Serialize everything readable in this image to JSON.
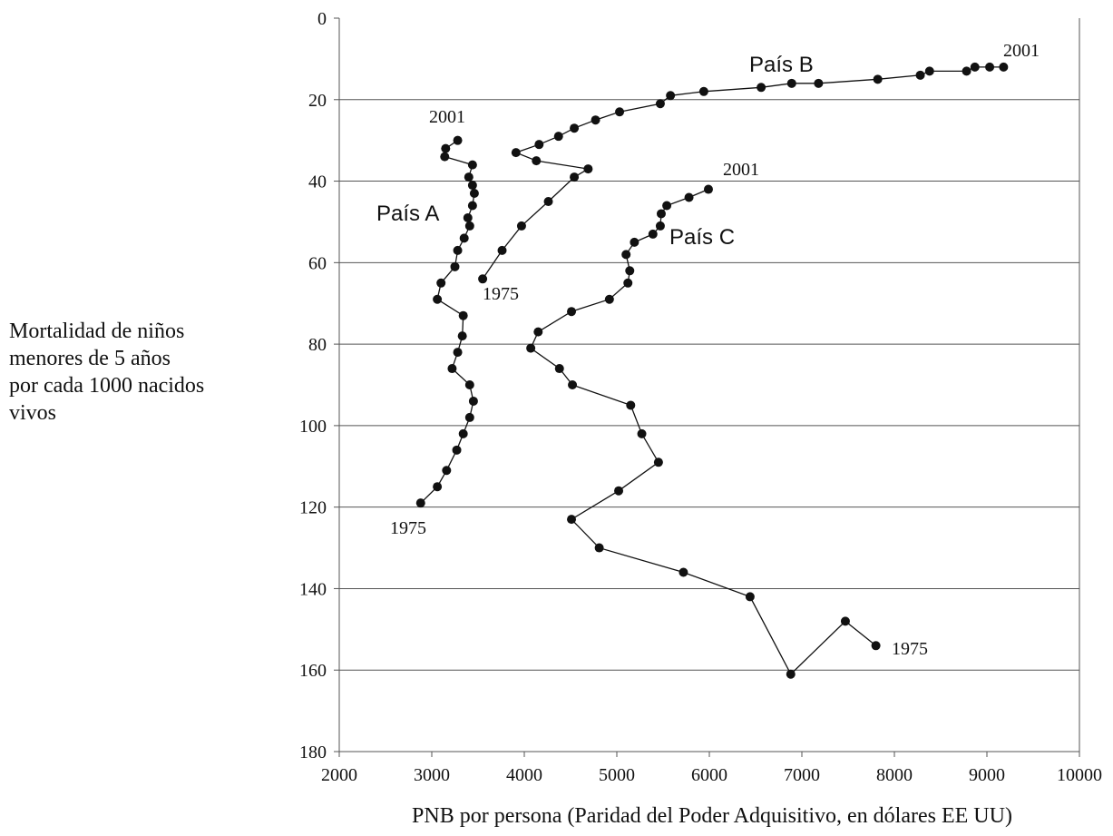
{
  "chart_data": {
    "type": "line",
    "title": "",
    "xlabel": "PNB por persona (Paridad del Poder Adquisitivo, en dólares EE UU)",
    "ylabel_lines": [
      "Mortalidad de niños",
      "menores de 5 años",
      "por cada 1000 nacidos",
      "vivos"
    ],
    "xlim": [
      2000,
      10000
    ],
    "ylim": [
      0,
      180
    ],
    "y_inverted": true,
    "grid": "horizontal",
    "x_ticks": [
      2000,
      3000,
      4000,
      5000,
      6000,
      7000,
      8000,
      9000,
      10000
    ],
    "y_ticks": [
      0,
      20,
      40,
      60,
      80,
      100,
      120,
      140,
      160,
      180
    ],
    "series": [
      {
        "name": "País A",
        "start_label": "1975",
        "end_label": "2001",
        "points": [
          [
            2880,
            119
          ],
          [
            3060,
            115
          ],
          [
            3160,
            111
          ],
          [
            3270,
            106
          ],
          [
            3340,
            102
          ],
          [
            3410,
            98
          ],
          [
            3450,
            94
          ],
          [
            3410,
            90
          ],
          [
            3220,
            86
          ],
          [
            3280,
            82
          ],
          [
            3330,
            78
          ],
          [
            3340,
            73
          ],
          [
            3060,
            69
          ],
          [
            3100,
            65
          ],
          [
            3250,
            61
          ],
          [
            3280,
            57
          ],
          [
            3350,
            54
          ],
          [
            3410,
            51
          ],
          [
            3390,
            49
          ],
          [
            3440,
            46
          ],
          [
            3460,
            43
          ],
          [
            3440,
            41
          ],
          [
            3400,
            39
          ],
          [
            3440,
            36
          ],
          [
            3140,
            34
          ],
          [
            3150,
            32
          ],
          [
            3280,
            30
          ]
        ]
      },
      {
        "name": "País B",
        "start_label": "1975",
        "end_label": "2001",
        "points": [
          [
            3550,
            64
          ],
          [
            3760,
            57
          ],
          [
            3970,
            51
          ],
          [
            4260,
            45
          ],
          [
            4540,
            39
          ],
          [
            4690,
            37
          ],
          [
            4130,
            35
          ],
          [
            3910,
            33
          ],
          [
            4160,
            31
          ],
          [
            4370,
            29
          ],
          [
            4540,
            27
          ],
          [
            4770,
            25
          ],
          [
            5030,
            23
          ],
          [
            5470,
            21
          ],
          [
            5580,
            19
          ],
          [
            5940,
            18
          ],
          [
            6560,
            17
          ],
          [
            6890,
            16
          ],
          [
            7180,
            16
          ],
          [
            7820,
            15
          ],
          [
            8280,
            14
          ],
          [
            8380,
            13
          ],
          [
            8780,
            13
          ],
          [
            8870,
            12
          ],
          [
            9030,
            12
          ],
          [
            9180,
            12
          ]
        ]
      },
      {
        "name": "País C",
        "start_label": "1975",
        "end_label": "2001",
        "points": [
          [
            7800,
            154
          ],
          [
            7470,
            148
          ],
          [
            6880,
            161
          ],
          [
            6440,
            142
          ],
          [
            5720,
            136
          ],
          [
            4810,
            130
          ],
          [
            4510,
            123
          ],
          [
            5020,
            116
          ],
          [
            5450,
            109
          ],
          [
            5270,
            102
          ],
          [
            5150,
            95
          ],
          [
            4520,
            90
          ],
          [
            4380,
            86
          ],
          [
            4070,
            81
          ],
          [
            4150,
            77
          ],
          [
            4510,
            72
          ],
          [
            4920,
            69
          ],
          [
            5120,
            65
          ],
          [
            5140,
            62
          ],
          [
            5100,
            58
          ],
          [
            5190,
            55
          ],
          [
            5390,
            53
          ],
          [
            5470,
            51
          ],
          [
            5480,
            48
          ],
          [
            5540,
            46
          ],
          [
            5780,
            44
          ],
          [
            5990,
            42
          ]
        ]
      }
    ]
  }
}
